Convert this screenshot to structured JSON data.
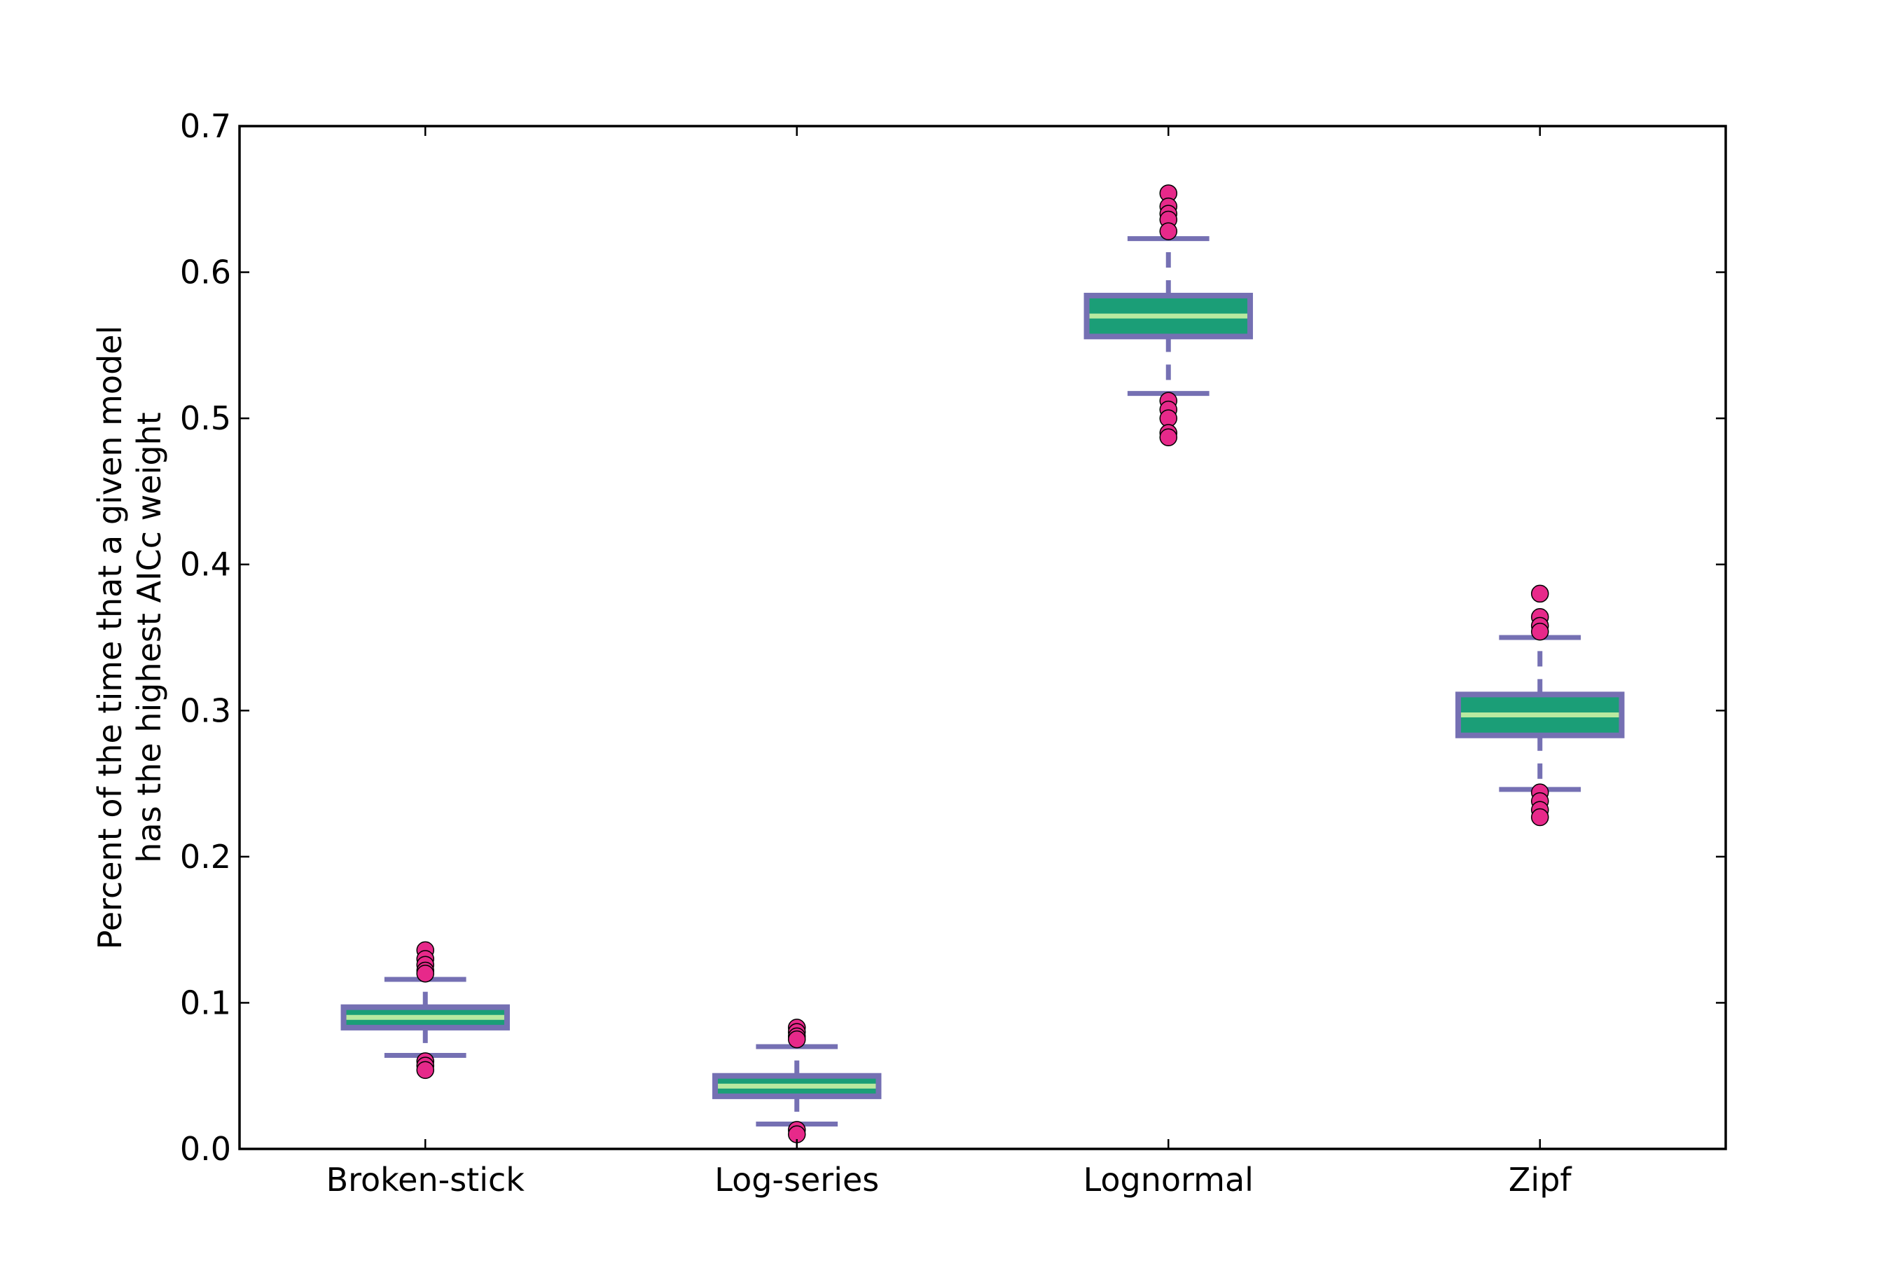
{
  "chart_data": {
    "type": "boxplot",
    "title": "",
    "xlabel": "",
    "ylabel": "Percent of the time that a given model\nhas the highest AICc weight",
    "ylim": [
      0.0,
      0.7
    ],
    "yticks": [
      "0.0",
      "0.1",
      "0.2",
      "0.3",
      "0.4",
      "0.5",
      "0.6",
      "0.7"
    ],
    "grid": false,
    "categories": [
      "Broken-stick",
      "Log-series",
      "Lognormal",
      "Zipf"
    ],
    "boxes": [
      {
        "category": "Broken-stick",
        "whisker_low": 0.064,
        "q1": 0.083,
        "median": 0.09,
        "q3": 0.097,
        "whisker_high": 0.116,
        "outliers": [
          0.136,
          0.13,
          0.126,
          0.122,
          0.12,
          0.06,
          0.057,
          0.054
        ]
      },
      {
        "category": "Log-series",
        "whisker_low": 0.017,
        "q1": 0.036,
        "median": 0.043,
        "q3": 0.05,
        "whisker_high": 0.07,
        "outliers": [
          0.083,
          0.08,
          0.077,
          0.075,
          0.013,
          0.01
        ]
      },
      {
        "category": "Lognormal",
        "whisker_low": 0.517,
        "q1": 0.556,
        "median": 0.57,
        "q3": 0.584,
        "whisker_high": 0.623,
        "outliers": [
          0.654,
          0.645,
          0.64,
          0.636,
          0.628,
          0.512,
          0.506,
          0.5,
          0.49,
          0.487
        ]
      },
      {
        "category": "Zipf",
        "whisker_low": 0.246,
        "q1": 0.283,
        "median": 0.297,
        "q3": 0.311,
        "whisker_high": 0.35,
        "outliers": [
          0.38,
          0.364,
          0.358,
          0.354,
          0.244,
          0.238,
          0.232,
          0.227
        ]
      }
    ],
    "colors": {
      "box_edge": "#7570b3",
      "box_fill": "#1b9e77",
      "median": "#b9e9a0",
      "whisker": "#7570b3",
      "outlier_fill": "#e7298a",
      "outlier_edge": "#000000",
      "axes": "#000000"
    }
  }
}
